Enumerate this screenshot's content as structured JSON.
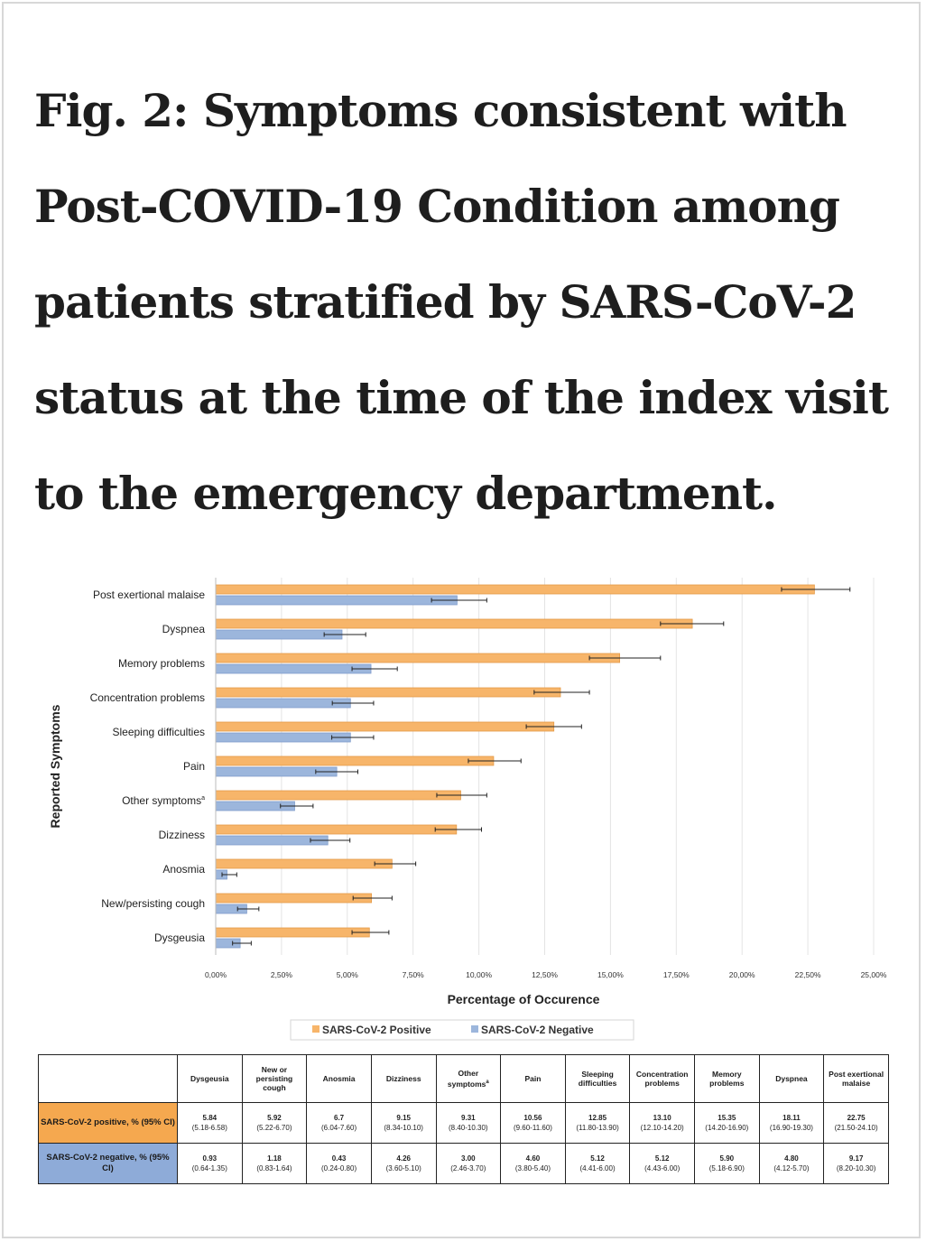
{
  "title": "Fig. 2: Symptoms consistent with Post-COVID-19 Condition among patients stratified by SARS-CoV-2 status at the time of the index visit to the emergency department.",
  "colors": {
    "positive": "#f7b56a",
    "positive_edge": "#e39a48",
    "negative": "#9cb6dc",
    "negative_edge": "#7f9ccb",
    "error_bar": "#222222"
  },
  "chart_data": {
    "type": "bar",
    "orientation": "horizontal",
    "xlabel": "Percentage of Occurence",
    "ylabel": "Reported Symptoms",
    "xlim": [
      0,
      25
    ],
    "x_ticks": [
      "0,00%",
      "2,50%",
      "5,00%",
      "7,50%",
      "10,00%",
      "12,50%",
      "15,00%",
      "17,50%",
      "20,00%",
      "22,50%",
      "25,00%"
    ],
    "grid": "vertical",
    "legend_position": "bottom",
    "categories": [
      "Post exertional malaise",
      "Dyspnea",
      "Memory problems",
      "Concentration problems",
      "Sleeping difficulties",
      "Pain",
      "Other symptoms",
      "Dizziness",
      "Anosmia",
      "New/persisting cough",
      "Dysgeusia"
    ],
    "category_superscripts": [
      "",
      "",
      "",
      "",
      "",
      "",
      "a",
      "",
      "",
      "",
      ""
    ],
    "series": [
      {
        "name": "SARS-CoV-2 Positive",
        "values": [
          22.75,
          18.11,
          15.35,
          13.1,
          12.85,
          10.56,
          9.31,
          9.15,
          6.7,
          5.92,
          5.84
        ],
        "ci_low": [
          21.5,
          16.9,
          14.2,
          12.1,
          11.8,
          9.6,
          8.4,
          8.34,
          6.04,
          5.22,
          5.18
        ],
        "ci_high": [
          24.1,
          19.3,
          16.9,
          14.2,
          13.9,
          11.6,
          10.3,
          10.1,
          7.6,
          6.7,
          6.58
        ]
      },
      {
        "name": "SARS-CoV-2 Negative",
        "values": [
          9.17,
          4.8,
          5.9,
          5.12,
          5.12,
          4.6,
          3.0,
          4.26,
          0.43,
          1.18,
          0.93
        ],
        "ci_low": [
          8.2,
          4.12,
          5.18,
          4.43,
          4.41,
          3.8,
          2.46,
          3.6,
          0.24,
          0.83,
          0.64
        ],
        "ci_high": [
          10.3,
          5.7,
          6.9,
          6.0,
          6.0,
          5.4,
          3.7,
          5.1,
          0.8,
          1.64,
          1.35
        ]
      }
    ]
  },
  "table": {
    "columns": [
      {
        "label": "Dysgeusia",
        "sup": ""
      },
      {
        "label": "New or persisting cough",
        "sup": ""
      },
      {
        "label": "Anosmia",
        "sup": ""
      },
      {
        "label": "Dizziness",
        "sup": ""
      },
      {
        "label": "Other symptoms",
        "sup": "a"
      },
      {
        "label": "Pain",
        "sup": ""
      },
      {
        "label": "Sleeping difficulties",
        "sup": ""
      },
      {
        "label": "Concentration problems",
        "sup": ""
      },
      {
        "label": "Memory problems",
        "sup": ""
      },
      {
        "label": "Dyspnea",
        "sup": ""
      },
      {
        "label": "Post exertional malaise",
        "sup": ""
      }
    ],
    "rows": [
      {
        "label": "SARS-CoV-2 positive, % (95% CI)",
        "cells": [
          {
            "value": "5.84",
            "ci": "(5.18-6.58)"
          },
          {
            "value": "5.92",
            "ci": "(5.22-6.70)"
          },
          {
            "value": "6.7",
            "ci": "(6.04-7.60)"
          },
          {
            "value": "9.15",
            "ci": "(8.34-10.10)"
          },
          {
            "value": "9.31",
            "ci": "(8.40-10.30)"
          },
          {
            "value": "10.56",
            "ci": "(9.60-11.60)"
          },
          {
            "value": "12.85",
            "ci": "(11.80-13.90)"
          },
          {
            "value": "13.10",
            "ci": "(12.10-14.20)"
          },
          {
            "value": "15.35",
            "ci": "(14.20-16.90)"
          },
          {
            "value": "18.11",
            "ci": "(16.90-19.30)"
          },
          {
            "value": "22.75",
            "ci": "(21.50-24.10)"
          }
        ]
      },
      {
        "label": "SARS-CoV-2 negative, % (95% CI)",
        "cells": [
          {
            "value": "0.93",
            "ci": "(0.64-1.35)"
          },
          {
            "value": "1.18",
            "ci": "(0.83-1.64)"
          },
          {
            "value": "0.43",
            "ci": "(0.24-0.80)"
          },
          {
            "value": "4.26",
            "ci": "(3.60-5.10)"
          },
          {
            "value": "3.00",
            "ci": "(2.46-3.70)"
          },
          {
            "value": "4.60",
            "ci": "(3.80-5.40)"
          },
          {
            "value": "5.12",
            "ci": "(4.41-6.00)"
          },
          {
            "value": "5.12",
            "ci": "(4.43-6.00)"
          },
          {
            "value": "5.90",
            "ci": "(5.18-6.90)"
          },
          {
            "value": "4.80",
            "ci": "(4.12-5.70)"
          },
          {
            "value": "9.17",
            "ci": "(8.20-10.30)"
          }
        ]
      }
    ]
  }
}
